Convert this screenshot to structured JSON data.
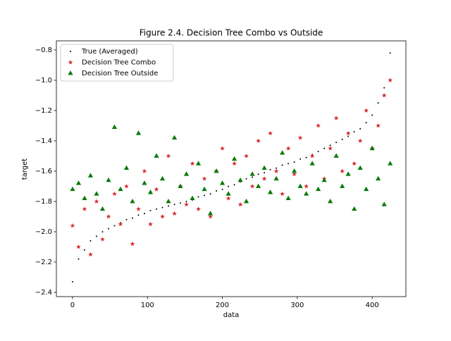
{
  "chart_data": {
    "type": "scatter",
    "title": "Figure 2.4. Decision Tree Combo vs Outside",
    "xlabel": "data",
    "ylabel": "target",
    "x": [
      0,
      8,
      16,
      24,
      32,
      40,
      48,
      56,
      64,
      72,
      80,
      88,
      96,
      104,
      112,
      120,
      128,
      136,
      144,
      152,
      160,
      168,
      176,
      184,
      192,
      200,
      208,
      216,
      224,
      232,
      240,
      248,
      256,
      264,
      272,
      280,
      288,
      296,
      304,
      312,
      320,
      328,
      336,
      344,
      352,
      360,
      368,
      376,
      384,
      392,
      400,
      408,
      416,
      424
    ],
    "series": [
      {
        "name": "True (Averaged)",
        "color": "#000000",
        "marker": "dot",
        "values": [
          -2.33,
          -2.18,
          -2.12,
          -2.06,
          -2.03,
          -2.0,
          -1.98,
          -1.96,
          -1.94,
          -1.92,
          -1.91,
          -1.89,
          -1.88,
          -1.86,
          -1.85,
          -1.84,
          -1.83,
          -1.82,
          -1.81,
          -1.8,
          -1.79,
          -1.77,
          -1.76,
          -1.75,
          -1.73,
          -1.72,
          -1.7,
          -1.69,
          -1.67,
          -1.65,
          -1.64,
          -1.62,
          -1.61,
          -1.59,
          -1.58,
          -1.56,
          -1.55,
          -1.54,
          -1.52,
          -1.51,
          -1.49,
          -1.47,
          -1.45,
          -1.43,
          -1.41,
          -1.39,
          -1.37,
          -1.34,
          -1.32,
          -1.28,
          -1.23,
          -1.15,
          -1.05,
          -0.82
        ]
      },
      {
        "name": "Decision Tree Combo",
        "color": "#d62728",
        "marker": "star",
        "values": [
          -1.96,
          -2.1,
          -1.85,
          -2.15,
          -1.8,
          -2.05,
          -1.9,
          -1.75,
          -1.95,
          -1.7,
          -2.08,
          -1.85,
          -1.6,
          -1.95,
          -1.72,
          -1.9,
          -1.5,
          -1.88,
          -1.7,
          -1.82,
          -1.55,
          -1.85,
          -1.65,
          -1.9,
          -1.6,
          -1.45,
          -1.78,
          -1.55,
          -1.82,
          -1.5,
          -1.7,
          -1.4,
          -1.65,
          -1.35,
          -1.6,
          -1.75,
          -1.45,
          -1.62,
          -1.38,
          -1.7,
          -1.5,
          -1.3,
          -1.65,
          -1.45,
          -1.25,
          -1.6,
          -1.35,
          -1.55,
          -1.4,
          -1.2,
          -1.45,
          -1.3,
          -1.1,
          -1.0
        ]
      },
      {
        "name": "Decision Tree Outside",
        "color": "#087a08",
        "marker": "triangle",
        "values": [
          -1.72,
          -1.68,
          -1.78,
          -1.63,
          -1.75,
          -1.85,
          -1.66,
          -1.31,
          -1.72,
          -1.58,
          -1.8,
          -1.35,
          -1.68,
          -1.74,
          -1.5,
          -1.65,
          -1.8,
          -1.38,
          -1.7,
          -1.62,
          -1.78,
          -1.55,
          -1.72,
          -1.88,
          -1.6,
          -1.68,
          -1.75,
          -1.52,
          -1.66,
          -1.8,
          -1.62,
          -1.7,
          -1.58,
          -1.74,
          -1.65,
          -1.48,
          -1.78,
          -1.6,
          -1.7,
          -1.75,
          -1.55,
          -1.72,
          -1.66,
          -1.8,
          -1.5,
          -1.7,
          -1.62,
          -1.85,
          -1.58,
          -1.72,
          -1.45,
          -1.65,
          -1.82,
          -1.55
        ]
      }
    ],
    "xlim": [
      -21.6,
      445
    ],
    "ylim": [
      -2.428,
      -0.74
    ],
    "xticks": [
      0,
      100,
      200,
      300,
      400
    ],
    "yticks": [
      {
        "value": -2.4,
        "label": "−2.4"
      },
      {
        "value": -2.2,
        "label": "−2.2"
      },
      {
        "value": -2.0,
        "label": "−2.0"
      },
      {
        "value": -1.8,
        "label": "−1.8"
      },
      {
        "value": -1.6,
        "label": "−1.6"
      },
      {
        "value": -1.4,
        "label": "−1.4"
      },
      {
        "value": -1.2,
        "label": "−1.2"
      },
      {
        "value": -1.0,
        "label": "−1.0"
      },
      {
        "value": -0.8,
        "label": "−0.8"
      }
    ],
    "legend": "upper left",
    "grid": false
  }
}
